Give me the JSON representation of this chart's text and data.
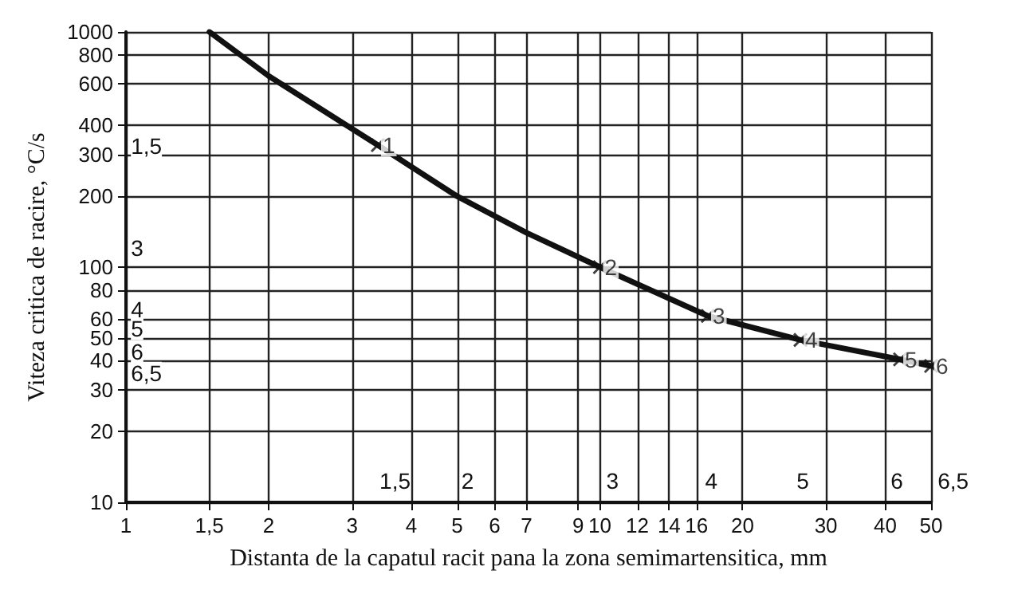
{
  "chart_data": {
    "type": "line",
    "xlabel": "Distanta de la capatul racit pana la zona semimartensitica, mm",
    "ylabel": "Viteza critica de racire, °C/s",
    "log": "xy",
    "grid": true,
    "marker": "none",
    "line_style": "solid",
    "xlim": [
      1,
      50
    ],
    "xticks": [
      1,
      {
        "value": 1.5,
        "label": "1,5"
      },
      2,
      3,
      4,
      5,
      6,
      7,
      9,
      10,
      12,
      14,
      16,
      20,
      30,
      40,
      50
    ],
    "ylim": [
      10,
      1000
    ],
    "yticks": [
      10,
      20,
      30,
      40,
      50,
      60,
      80,
      100,
      200,
      300,
      400,
      600,
      800,
      1000
    ],
    "series": [
      {
        "color": "#111111",
        "x": [
          1.5,
          2,
          3.4,
          5,
          7,
          10,
          16.9,
          26.5,
          43,
          50
        ],
        "values": [
          1000,
          650,
          330,
          200,
          140,
          100,
          62,
          49,
          40.5,
          38
        ]
      },
      {
        "type": "scatter",
        "marker": "cross",
        "color": "#111111",
        "x": [
          3.4,
          10,
          16.9,
          26.5,
          43,
          50
        ],
        "values": [
          330,
          100,
          62,
          49,
          40.5,
          38
        ]
      }
    ],
    "annotations": [
      {
        "text": "1",
        "x": 3.4,
        "y": 330
      },
      {
        "text": "2",
        "x": 10,
        "y": 100
      },
      {
        "text": "3",
        "x": 16.9,
        "y": 62
      },
      {
        "text": "4",
        "x": 26.5,
        "y": 49
      },
      {
        "text": "5",
        "x": 43,
        "y": 40.5
      },
      {
        "text": "6",
        "x": 50,
        "y": 38
      },
      "1,5",
      "3",
      "4",
      "5",
      "6",
      "6,5",
      "1,5",
      "2",
      "3",
      "4",
      "5",
      "6",
      "6,5"
    ]
  }
}
